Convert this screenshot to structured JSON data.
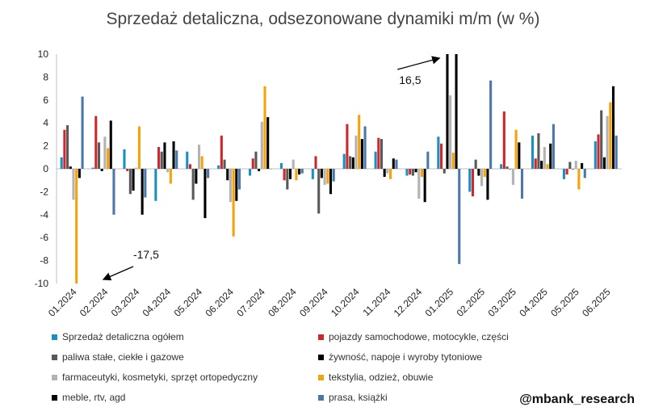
{
  "watermark": "@mbank_research",
  "chart_data": {
    "type": "bar",
    "title": "Sprzedaż detaliczna, odsezonowane dynamiki m/m (w %)",
    "xlabel": "",
    "ylabel": "",
    "ylim": [
      -10,
      10
    ],
    "yticks": [
      10,
      8,
      6,
      4,
      2,
      0,
      -2,
      -4,
      -6,
      -8,
      -10
    ],
    "grid": false,
    "legend_position": "bottom",
    "categories": [
      "01.2024",
      "02.2024",
      "03.2024",
      "04.2024",
      "05.2024",
      "06.2024",
      "07.2024",
      "08.2024",
      "09.2024",
      "10.2024",
      "11.2024",
      "12.2024",
      "01.2025",
      "02.2025",
      "03.2025",
      "04.2025",
      "05.2025",
      "06.2025"
    ],
    "series": [
      {
        "name": "Sprzedaż detaliczna ogółem",
        "color": "#1a8fc1",
        "values": [
          1.0,
          0.1,
          1.7,
          -2.8,
          1.5,
          0.3,
          -0.6,
          0.5,
          -0.9,
          1.3,
          1.5,
          -0.6,
          2.8,
          -2.0,
          0.4,
          2.9,
          -0.9,
          2.4
        ]
      },
      {
        "name": "pojazdy samochodowe, motocykle, części",
        "color": "#d0272d",
        "values": [
          3.4,
          4.6,
          -0.2,
          1.9,
          0.4,
          2.9,
          0.9,
          -1.0,
          1.1,
          3.9,
          2.7,
          -0.5,
          2.2,
          -2.4,
          5.0,
          0.9,
          -0.5,
          3.0
        ]
      },
      {
        "name": "paliwa stałe, ciekłe i gazowe",
        "color": "#595959",
        "values": [
          3.8,
          2.3,
          -2.2,
          1.5,
          -2.7,
          0.8,
          1.5,
          -1.8,
          -3.9,
          1.1,
          2.6,
          -0.6,
          -0.4,
          0.8,
          0.2,
          3.1,
          0.6,
          5.1
        ]
      },
      {
        "name": "żywność, napoje i wyroby tytoniowe",
        "color": "#000000",
        "values": [
          0.2,
          -0.2,
          -1.9,
          2.3,
          -1.3,
          -1.0,
          -0.2,
          -0.9,
          -0.8,
          1.0,
          -0.7,
          -0.3,
          10.0,
          -0.6,
          0.0,
          0.7,
          0.0,
          1.0
        ]
      },
      {
        "name": "farmaceutyki, kosmetyki, sprzęt ortopedyczny",
        "color": "#b3b3b3",
        "values": [
          -2.7,
          2.8,
          0.1,
          -0.3,
          2.1,
          -2.9,
          4.1,
          0.8,
          -1.4,
          2.9,
          -0.4,
          -2.6,
          6.4,
          -1.5,
          -1.4,
          1.9,
          0.7,
          4.6
        ]
      },
      {
        "name": "tekstylia, odzież, obuwie",
        "color": "#f5a30b",
        "values": [
          -10.0,
          1.8,
          3.7,
          -1.3,
          1.1,
          -5.9,
          7.2,
          -1.0,
          -1.3,
          4.7,
          -0.9,
          -0.7,
          1.4,
          -0.7,
          3.4,
          0.4,
          -1.8,
          5.8
        ]
      },
      {
        "name": "meble, rtv, agd",
        "color": "#000000",
        "values": [
          -0.8,
          4.2,
          -4.0,
          2.4,
          -4.3,
          -2.8,
          4.5,
          -0.5,
          -2.2,
          2.6,
          0.9,
          -2.9,
          10.0,
          -2.7,
          2.3,
          2.2,
          0.5,
          7.2
        ]
      },
      {
        "name": "prasa, książki",
        "color": "#4a78a8",
        "values": [
          6.3,
          -4.0,
          -2.5,
          1.6,
          -0.8,
          -1.8,
          0.0,
          -0.4,
          -1.1,
          3.7,
          0.8,
          1.5,
          -8.3,
          7.7,
          -2.6,
          3.9,
          -0.8,
          2.9
        ]
      }
    ],
    "annotations": [
      {
        "text": "16,5",
        "category": "01.2025",
        "series": "żywność, napoje i wyroby tytoniowe"
      },
      {
        "text": "-17,5",
        "category": "01.2024",
        "series": "tekstylia, odzież, obuwie"
      }
    ]
  }
}
